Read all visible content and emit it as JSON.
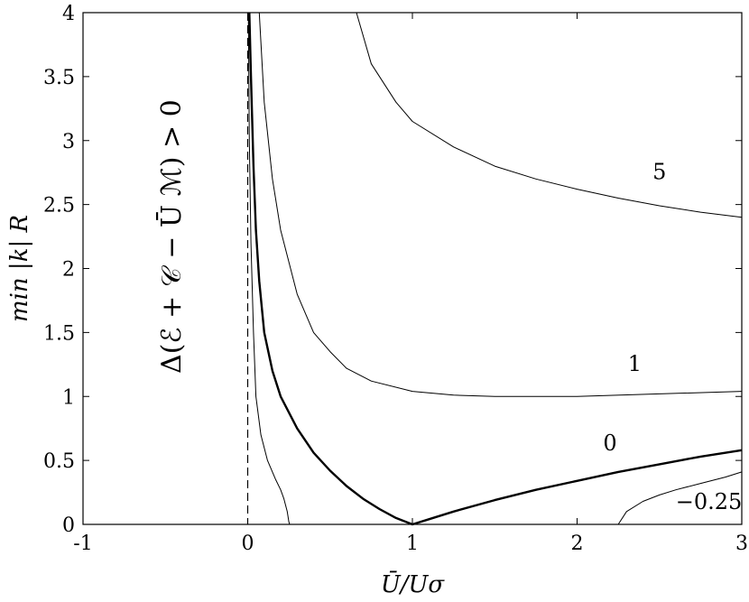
{
  "chart_data": {
    "type": "line",
    "xlabel": "Ū/Uσ",
    "ylabel": "min |k| R",
    "xlim": [
      -1,
      3
    ],
    "ylim": [
      0,
      4
    ],
    "x_ticks": [
      "-1",
      "0",
      "1",
      "2",
      "3"
    ],
    "y_ticks": [
      "0",
      "0.5",
      "1",
      "1.5",
      "2",
      "2.5",
      "3",
      "3.5",
      "4"
    ],
    "grid": false,
    "legend": "none",
    "region_label": "Δ(ℰ + 𝒞 − Ū ℳ) > 0",
    "series": [
      {
        "label": "5",
        "stroke_width": 1,
        "points": [
          [
            0.66,
            4.0
          ],
          [
            0.75,
            3.6
          ],
          [
            0.9,
            3.3
          ],
          [
            1.0,
            3.15
          ],
          [
            1.25,
            2.95
          ],
          [
            1.5,
            2.8
          ],
          [
            1.75,
            2.7
          ],
          [
            2.0,
            2.62
          ],
          [
            2.25,
            2.55
          ],
          [
            2.5,
            2.49
          ],
          [
            2.75,
            2.44
          ],
          [
            3.0,
            2.4
          ]
        ]
      },
      {
        "label": "1",
        "stroke_width": 1,
        "points": [
          [
            0.07,
            4.0
          ],
          [
            0.1,
            3.3
          ],
          [
            0.15,
            2.7
          ],
          [
            0.2,
            2.3
          ],
          [
            0.3,
            1.8
          ],
          [
            0.4,
            1.5
          ],
          [
            0.5,
            1.35
          ],
          [
            0.6,
            1.22
          ],
          [
            0.75,
            1.12
          ],
          [
            1.0,
            1.04
          ],
          [
            1.25,
            1.01
          ],
          [
            1.5,
            1.0
          ],
          [
            2.0,
            1.0
          ],
          [
            2.5,
            1.02
          ],
          [
            3.0,
            1.04
          ]
        ]
      },
      {
        "label": "0",
        "stroke_width": 2.4,
        "points": [
          [
            0.01,
            4.0
          ],
          [
            0.02,
            3.5
          ],
          [
            0.035,
            2.8
          ],
          [
            0.05,
            2.3
          ],
          [
            0.07,
            1.9
          ],
          [
            0.1,
            1.5
          ],
          [
            0.15,
            1.2
          ],
          [
            0.2,
            1.0
          ],
          [
            0.3,
            0.75
          ],
          [
            0.4,
            0.56
          ],
          [
            0.5,
            0.42
          ],
          [
            0.6,
            0.3
          ],
          [
            0.7,
            0.2
          ],
          [
            0.8,
            0.12
          ],
          [
            0.9,
            0.05
          ],
          [
            1.0,
            0.0
          ],
          [
            1.1,
            0.04
          ],
          [
            1.25,
            0.1
          ],
          [
            1.5,
            0.19
          ],
          [
            1.75,
            0.27
          ],
          [
            2.0,
            0.34
          ],
          [
            2.25,
            0.41
          ],
          [
            2.5,
            0.47
          ],
          [
            2.75,
            0.53
          ],
          [
            3.0,
            0.58
          ]
        ]
      },
      {
        "label": "",
        "stroke_width": 1,
        "points": [
          [
            0.004,
            4.0
          ],
          [
            0.01,
            3.0
          ],
          [
            0.02,
            2.2
          ],
          [
            0.035,
            1.5
          ],
          [
            0.05,
            1.0
          ],
          [
            0.08,
            0.7
          ],
          [
            0.12,
            0.5
          ],
          [
            0.17,
            0.35
          ],
          [
            0.2,
            0.27
          ],
          [
            0.22,
            0.2
          ],
          [
            0.24,
            0.1
          ],
          [
            0.25,
            0.02
          ],
          [
            0.255,
            0.0
          ]
        ]
      },
      {
        "label": "−0.25",
        "stroke_width": 1,
        "points": [
          [
            2.25,
            0.0
          ],
          [
            2.3,
            0.1
          ],
          [
            2.4,
            0.18
          ],
          [
            2.5,
            0.23
          ],
          [
            2.6,
            0.27
          ],
          [
            2.75,
            0.32
          ],
          [
            2.9,
            0.37
          ],
          [
            3.0,
            0.41
          ]
        ]
      }
    ],
    "reference_lines": [
      {
        "x": 0,
        "style": "dashed"
      }
    ],
    "annotations": [
      {
        "text": "5",
        "x": 2.5,
        "y": 2.7
      },
      {
        "text": "1",
        "x": 2.35,
        "y": 1.2
      },
      {
        "text": "0",
        "x": 2.2,
        "y": 0.58
      },
      {
        "text": "−0.25",
        "x": 2.8,
        "y": 0.12
      }
    ]
  }
}
